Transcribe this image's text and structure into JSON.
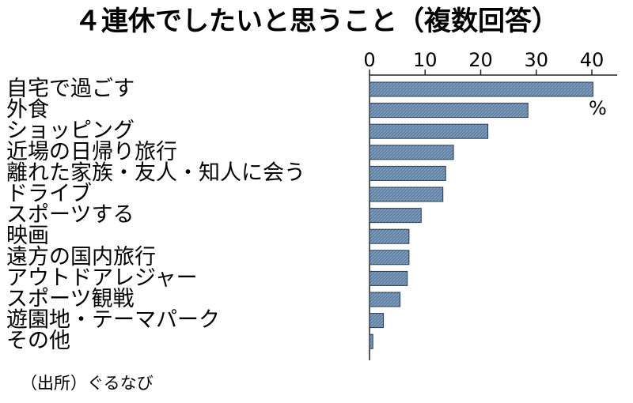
{
  "chart_data": {
    "type": "bar",
    "orientation": "horizontal",
    "title": "４連休でしたいと思うこと（複数回答）",
    "unit": "%",
    "source": "（出所）ぐるなび",
    "xlim": [
      0,
      40
    ],
    "ticks": [
      "0",
      "10",
      "20",
      "30",
      "40"
    ],
    "tick_values": [
      0,
      10,
      20,
      30,
      40
    ],
    "categories": [
      "自宅で過ごす",
      "外食",
      "ショッピング",
      "近場の日帰り旅行",
      "離れた家族・友人・知人に会う",
      "ドライブ",
      "スポーツする",
      "映画",
      "遠方の国内旅行",
      "アウトドアレジャー",
      "スポーツ観戦",
      "遊園地・テーマパーク",
      "その他"
    ],
    "values": [
      40.2,
      28.5,
      21.3,
      15.1,
      13.7,
      13.2,
      9.3,
      7.1,
      7.1,
      6.8,
      5.5,
      2.5,
      0.6
    ],
    "bar_color": "#5f7fa3",
    "bar_edge_color": "#2b3a4d"
  }
}
